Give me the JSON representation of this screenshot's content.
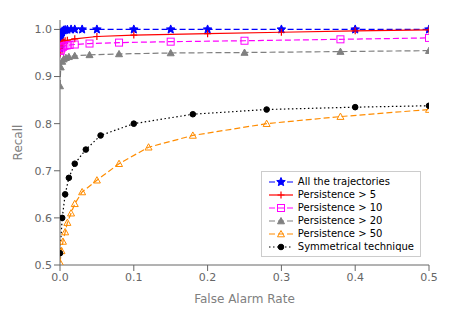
{
  "chart_data": {
    "type": "line",
    "title": "",
    "xlabel": "False Alarm Rate",
    "ylabel": "Recall",
    "xlim": [
      0,
      0.5
    ],
    "ylim": [
      0.5,
      1.02
    ],
    "xticks": [
      {
        "value": 0,
        "label": "0.0"
      },
      0.1,
      0.2,
      0.3,
      0.4,
      0.5
    ],
    "yticks": [
      0.5,
      0.6,
      0.7,
      0.8,
      0.9,
      {
        "value": 1,
        "label": "1.0"
      }
    ],
    "grid": false,
    "legend": "lower right",
    "series": [
      {
        "name": "All the trajectories",
        "color": "#0000FF",
        "line_style": "dashed",
        "marker": "star",
        "x": [
          0.0,
          0.0005,
          0.001,
          0.0015,
          0.002,
          0.003,
          0.005,
          0.007,
          0.01,
          0.015,
          0.02,
          0.03,
          0.05,
          0.1,
          0.15,
          0.2,
          0.3,
          0.4,
          0.5
        ],
        "values": [
          0.96,
          0.975,
          0.985,
          0.99,
          0.993,
          0.996,
          0.998,
          0.999,
          0.9995,
          1.0,
          1.0,
          1.0,
          1.0,
          1.0,
          1.0,
          1.0,
          1.0,
          1.0,
          1.0
        ]
      },
      {
        "name": "Persistence > 5",
        "color": "#FF0000",
        "line_style": "solid",
        "marker": "plus",
        "x": [
          0.0,
          0.0005,
          0.001,
          0.002,
          0.003,
          0.005,
          0.007,
          0.01,
          0.02,
          0.05,
          0.1,
          0.2,
          0.3,
          0.4,
          0.5
        ],
        "values": [
          0.95,
          0.96,
          0.965,
          0.97,
          0.972,
          0.974,
          0.976,
          0.977,
          0.98,
          0.985,
          0.988,
          0.991,
          0.994,
          0.997,
          0.999
        ]
      },
      {
        "name": "Persistence > 10",
        "color": "#FF00FF",
        "line_style": "dashed",
        "marker": "square_open",
        "x": [
          0.0,
          0.001,
          0.002,
          0.004,
          0.006,
          0.009,
          0.013,
          0.02,
          0.04,
          0.08,
          0.15,
          0.25,
          0.38,
          0.5
        ],
        "values": [
          0.94,
          0.955,
          0.96,
          0.963,
          0.965,
          0.966,
          0.967,
          0.968,
          0.97,
          0.972,
          0.974,
          0.976,
          0.979,
          0.982
        ]
      },
      {
        "name": "Persistence > 20",
        "color": "#808080",
        "line_style": "dashed",
        "marker": "triangle",
        "x": [
          0.0,
          0.001,
          0.003,
          0.005,
          0.008,
          0.012,
          0.02,
          0.04,
          0.08,
          0.15,
          0.25,
          0.38,
          0.5
        ],
        "values": [
          0.88,
          0.92,
          0.932,
          0.937,
          0.94,
          0.942,
          0.944,
          0.946,
          0.948,
          0.95,
          0.951,
          0.953,
          0.955
        ]
      },
      {
        "name": "Persistence > 50",
        "color": "#FF8C00",
        "line_style": "dashed",
        "marker": "triangle_open",
        "x": [
          0.0,
          0.002,
          0.004,
          0.007,
          0.01,
          0.015,
          0.02,
          0.03,
          0.05,
          0.08,
          0.12,
          0.18,
          0.28,
          0.38,
          0.5
        ],
        "values": [
          0.505,
          0.53,
          0.55,
          0.57,
          0.59,
          0.61,
          0.63,
          0.655,
          0.68,
          0.715,
          0.75,
          0.775,
          0.8,
          0.815,
          0.83
        ]
      },
      {
        "name": "Symmetrical technique",
        "color": "#000000",
        "line_style": "dotted",
        "marker": "circle",
        "x": [
          0.0,
          0.003,
          0.007,
          0.012,
          0.02,
          0.035,
          0.055,
          0.1,
          0.18,
          0.28,
          0.4,
          0.5
        ],
        "values": [
          0.525,
          0.6,
          0.65,
          0.685,
          0.715,
          0.745,
          0.775,
          0.8,
          0.82,
          0.83,
          0.835,
          0.838
        ]
      }
    ]
  }
}
